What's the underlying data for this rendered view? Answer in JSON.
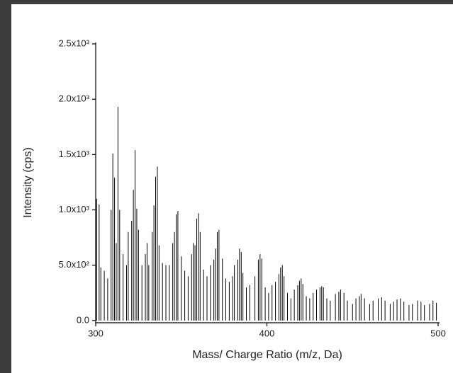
{
  "chart_data": {
    "type": "stem",
    "xlabel": "Mass/ Charge Ratio (m/z, Da)",
    "ylabel": "Intensity (cps)",
    "color": "#000000",
    "xlim": [
      300,
      500
    ],
    "xticks": [
      300,
      400,
      500
    ],
    "ylim": [
      -20,
      2500
    ],
    "yticks": [
      {
        "value": 0,
        "label": "0.0"
      },
      {
        "value": 500,
        "label": "5.0x10²"
      },
      {
        "value": 1000,
        "label": "1.0x10³"
      },
      {
        "value": 1500,
        "label": "1.5x10³"
      },
      {
        "value": 2000,
        "label": "2.0x10³"
      },
      {
        "value": 2500,
        "label": "2.5x10³"
      }
    ],
    "x": [
      300.5,
      302,
      303,
      305,
      307,
      309,
      310,
      311,
      312,
      313,
      314,
      316,
      318,
      319,
      321,
      322,
      323,
      324,
      325,
      327,
      329,
      330,
      331,
      333,
      334,
      335,
      336,
      337,
      339,
      341,
      343,
      345,
      346,
      347,
      348,
      350,
      352,
      354,
      356,
      357,
      358,
      359,
      360,
      361,
      363,
      365,
      367,
      369,
      370,
      371,
      372,
      374,
      376,
      378,
      380,
      381,
      383,
      384,
      385,
      386,
      388,
      390,
      393,
      395,
      396,
      397,
      399,
      401,
      403,
      405,
      407,
      408,
      409,
      410,
      412,
      414,
      416,
      418,
      419,
      420,
      421,
      423,
      425,
      427,
      429,
      431,
      432,
      433,
      435,
      437,
      440,
      442,
      443,
      445,
      447,
      450,
      452,
      454,
      455,
      457,
      460,
      462,
      465,
      467,
      469,
      472,
      474,
      476,
      478,
      480,
      483,
      485,
      488,
      490,
      492,
      495,
      497,
      499
    ],
    "values": [
      1100,
      1050,
      480,
      450,
      380,
      1000,
      1510,
      1290,
      700,
      1930,
      1000,
      600,
      500,
      800,
      900,
      1180,
      1540,
      1010,
      820,
      500,
      600,
      700,
      500,
      800,
      1040,
      1300,
      1390,
      680,
      520,
      500,
      500,
      700,
      800,
      960,
      990,
      580,
      450,
      400,
      600,
      700,
      680,
      920,
      970,
      800,
      460,
      400,
      500,
      550,
      650,
      800,
      820,
      560,
      380,
      350,
      400,
      500,
      550,
      650,
      620,
      430,
      300,
      320,
      400,
      550,
      600,
      560,
      300,
      250,
      320,
      350,
      420,
      480,
      500,
      400,
      250,
      200,
      280,
      320,
      360,
      380,
      330,
      220,
      200,
      250,
      280,
      300,
      310,
      300,
      200,
      180,
      240,
      260,
      280,
      250,
      180,
      150,
      200,
      220,
      240,
      200,
      150,
      180,
      200,
      210,
      180,
      150,
      170,
      190,
      200,
      170,
      140,
      150,
      180,
      170,
      140,
      150,
      180,
      160
    ]
  }
}
